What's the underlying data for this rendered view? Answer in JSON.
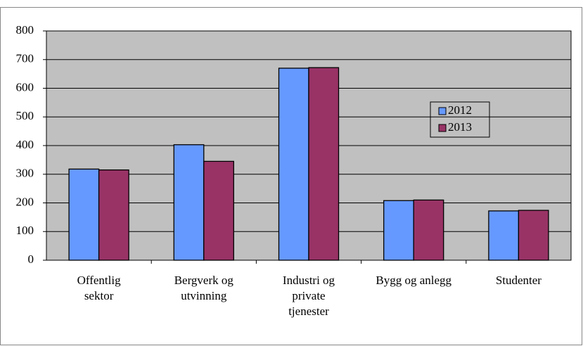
{
  "chart_data": {
    "type": "bar",
    "categories": [
      "Offentlig\nsektor",
      "Bergverk og\nutvinning",
      "Industri og\nprivate\ntjenester",
      "Bygg og anlegg",
      "Studenter"
    ],
    "series": [
      {
        "name": "2012",
        "color": "#6699ff",
        "values": [
          318,
          403,
          670,
          208,
          172
        ]
      },
      {
        "name": "2013",
        "color": "#993366",
        "values": [
          315,
          345,
          672,
          210,
          174
        ]
      }
    ],
    "ylim": [
      0,
      800
    ],
    "yticks": [
      0,
      100,
      200,
      300,
      400,
      500,
      600,
      700,
      800
    ],
    "grid": true,
    "legend": "right"
  }
}
